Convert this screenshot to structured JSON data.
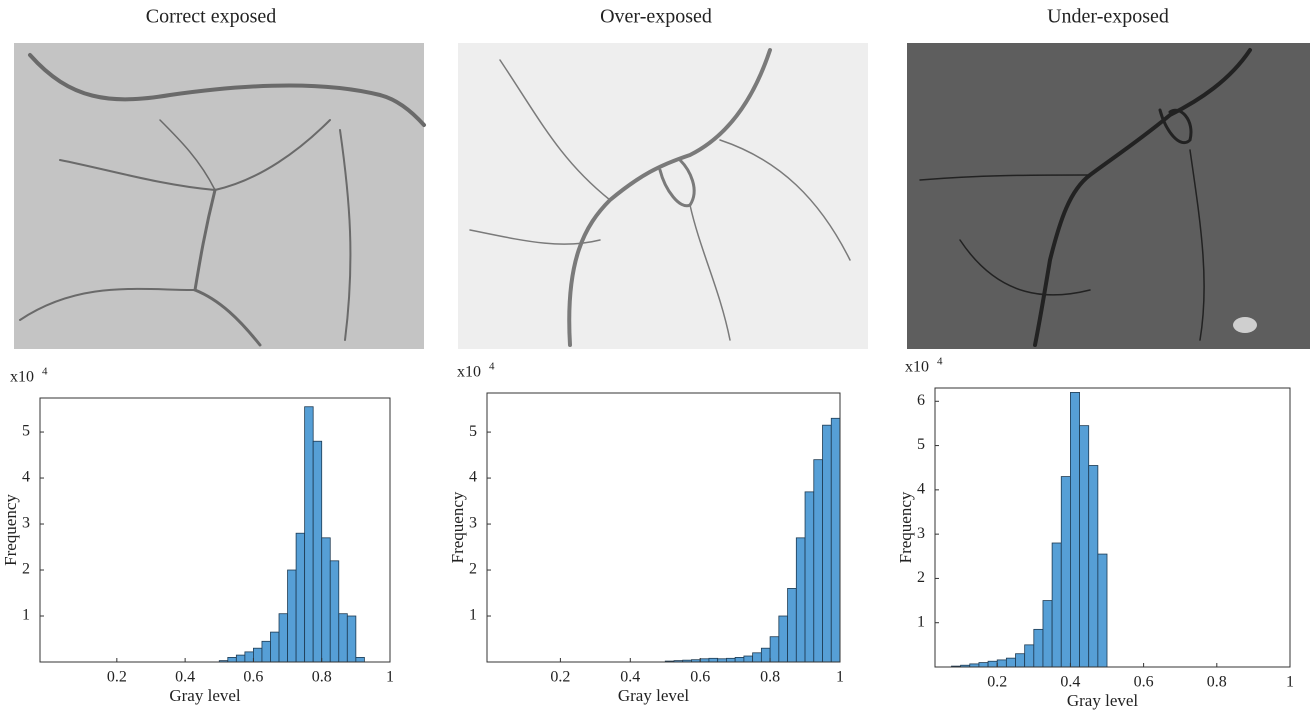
{
  "chart_data": [
    {
      "type": "histogram",
      "title": "Correct exposed",
      "x_label": "Gray level",
      "y_label": "Frequency",
      "y_scale_label": {
        "base": "x10",
        "exponent": "4"
      },
      "bins": [
        0.5,
        0.525,
        0.55,
        0.575,
        0.6,
        0.625,
        0.65,
        0.675,
        0.7,
        0.725,
        0.75,
        0.775,
        0.8,
        0.825,
        0.85,
        0.875,
        0.9,
        0.925
      ],
      "values": [
        0.03,
        0.1,
        0.15,
        0.22,
        0.3,
        0.45,
        0.65,
        1.05,
        2.0,
        2.8,
        5.55,
        4.8,
        2.7,
        2.2,
        1.05,
        1.0,
        0.1
      ],
      "color": "#569fd6",
      "xlim": [
        -0.025,
        1
      ],
      "ylim": [
        0,
        5.74
      ],
      "xticks": [
        0.2,
        0.4,
        0.6,
        0.8,
        1
      ],
      "yticks": [
        1,
        2,
        3,
        4,
        5
      ]
    },
    {
      "type": "histogram",
      "title": "Over-exposed",
      "x_label": "Gray level",
      "y_label": "Frequency",
      "y_scale_label": {
        "base": "x10",
        "exponent": "4"
      },
      "bins": [
        0.5,
        0.525,
        0.55,
        0.575,
        0.6,
        0.625,
        0.65,
        0.675,
        0.7,
        0.725,
        0.75,
        0.775,
        0.8,
        0.825,
        0.85,
        0.875,
        0.9,
        0.925,
        0.95,
        0.975,
        1.0
      ],
      "values": [
        0.02,
        0.03,
        0.04,
        0.05,
        0.07,
        0.08,
        0.07,
        0.08,
        0.1,
        0.13,
        0.2,
        0.3,
        0.55,
        1.0,
        1.6,
        2.7,
        3.7,
        4.4,
        5.15,
        5.3
      ],
      "color": "#569fd6",
      "xlim": [
        -0.01,
        1
      ],
      "ylim": [
        0,
        5.85
      ],
      "xticks": [
        0.2,
        0.4,
        0.6,
        0.8,
        1
      ],
      "yticks": [
        1,
        2,
        3,
        4,
        5
      ]
    },
    {
      "type": "histogram",
      "title": "Under-exposed",
      "x_label": "Gray level",
      "y_label": "Frequency",
      "y_scale_label": {
        "base": "x10",
        "exponent": "4"
      },
      "bins": [
        0.075,
        0.1,
        0.125,
        0.15,
        0.175,
        0.2,
        0.225,
        0.25,
        0.275,
        0.3,
        0.325,
        0.35,
        0.375,
        0.4,
        0.425,
        0.45,
        0.475,
        0.5
      ],
      "values": [
        0.02,
        0.04,
        0.07,
        0.1,
        0.13,
        0.16,
        0.2,
        0.3,
        0.5,
        0.85,
        1.5,
        2.8,
        4.3,
        6.2,
        5.45,
        4.55,
        2.55
      ],
      "color": "#569fd6",
      "xlim": [
        0.03,
        1
      ],
      "ylim": [
        0,
        6.3
      ],
      "xticks": [
        0.2,
        0.4,
        0.6,
        0.8,
        1
      ],
      "yticks": [
        1,
        2,
        3,
        4,
        5,
        6
      ]
    }
  ]
}
